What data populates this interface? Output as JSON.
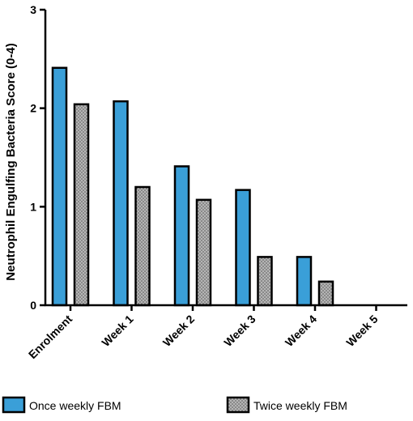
{
  "chart_data": {
    "type": "bar",
    "title": "",
    "xlabel": "",
    "ylabel": "Neutrophil Engulfing Bacteria Score (0-4)",
    "categories": [
      "Enrolment",
      "Week 1",
      "Week 2",
      "Week 3",
      "Week 4",
      "Week 5"
    ],
    "ylim": [
      0,
      3
    ],
    "yticks": [
      0,
      1,
      2,
      3
    ],
    "grid": false,
    "legend_position": "bottom",
    "series": [
      {
        "name": "Once weekly FBM",
        "values": [
          2.41,
          2.07,
          1.41,
          1.17,
          0.49,
          0
        ],
        "color": "#3a9fd8",
        "pattern": "solid"
      },
      {
        "name": "Twice weekly FBM",
        "values": [
          2.04,
          1.2,
          1.07,
          0.49,
          0.24,
          0
        ],
        "color": "#9a9a9a",
        "pattern": "dotted"
      }
    ]
  }
}
